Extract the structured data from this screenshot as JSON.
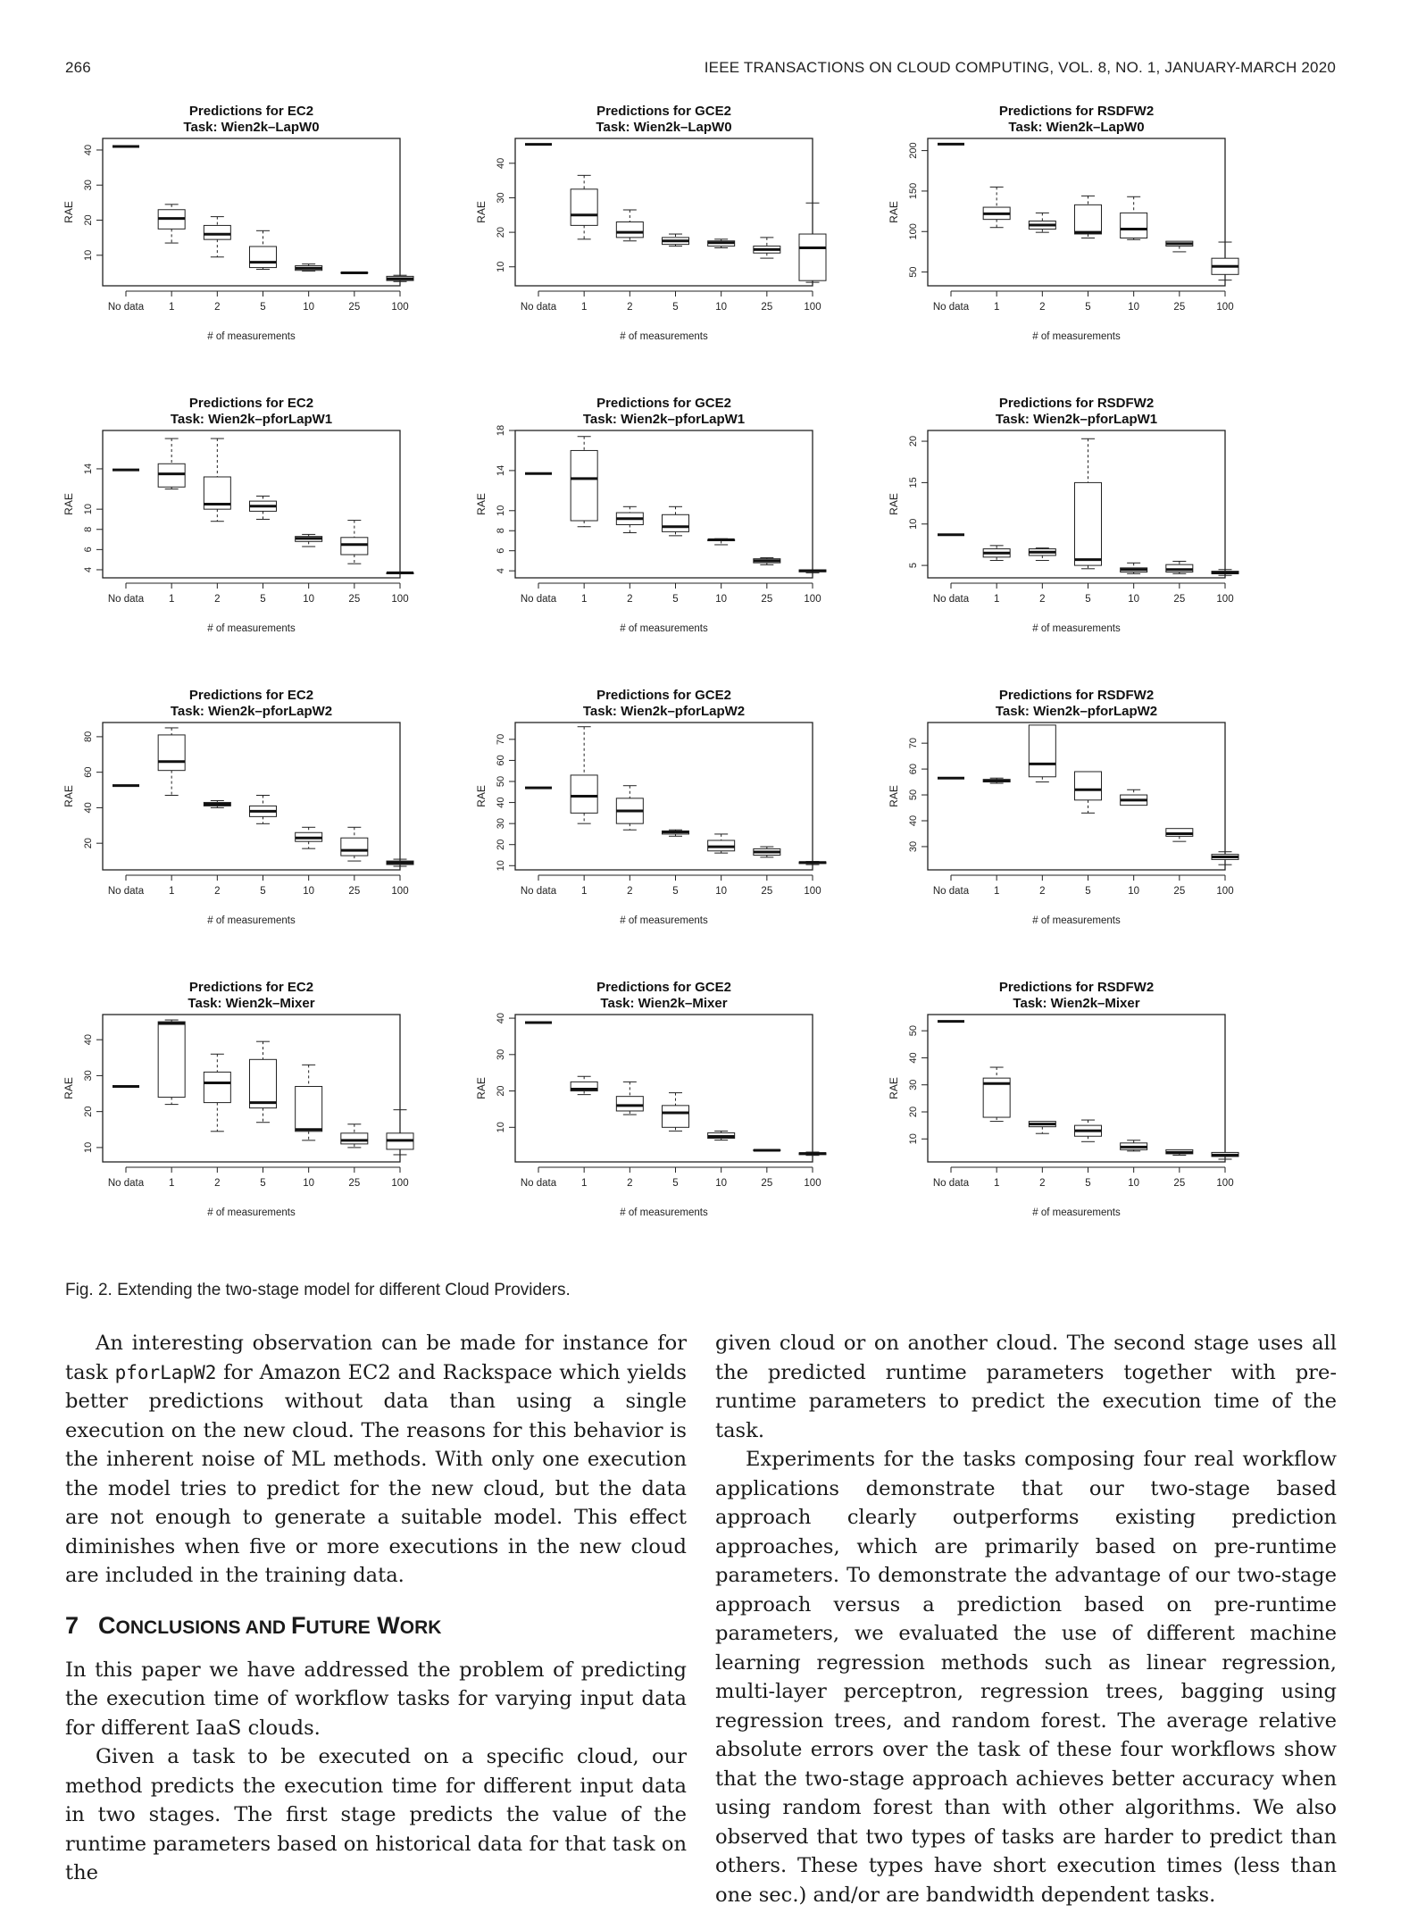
{
  "header": {
    "page_number": "266",
    "journal": "IEEE TRANSACTIONS ON CLOUD COMPUTING, VOL. 8, NO. 1, JANUARY-MARCH 2020"
  },
  "figure": {
    "caption": "Fig. 2. Extending the two-stage model for different Cloud Providers."
  },
  "chart_data": [
    {
      "type": "boxplot",
      "title": "Predictions for EC2",
      "subtitle": "Task: Wien2k–LapW0",
      "xlabel": "# of measurements",
      "ylabel": "RAE",
      "categories": [
        "No data",
        "1",
        "2",
        "5",
        "10",
        "25",
        "100"
      ],
      "yticks": [
        10,
        20,
        30,
        40
      ],
      "ylim": [
        1.3,
        43.3
      ],
      "boxes": [
        [
          41,
          41,
          41,
          41,
          41
        ],
        [
          13.5,
          17.5,
          20.5,
          23,
          24.5
        ],
        [
          9.5,
          14.5,
          16,
          18.5,
          21
        ],
        [
          6,
          6.5,
          8,
          12.5,
          17
        ],
        [
          5.5,
          5.7,
          6.3,
          7,
          7.5
        ],
        [
          4.8,
          4.9,
          5,
          5.1,
          5.2
        ],
        [
          2.5,
          2.8,
          3.3,
          4,
          4.3
        ]
      ]
    },
    {
      "type": "boxplot",
      "title": "Predictions for GCE2",
      "subtitle": "Task: Wien2k–LapW0",
      "xlabel": "# of measurements",
      "ylabel": "RAE",
      "categories": [
        "No data",
        "1",
        "2",
        "5",
        "10",
        "25",
        "100"
      ],
      "yticks": [
        10,
        20,
        30,
        40
      ],
      "ylim": [
        4.5,
        47.2
      ],
      "boxes": [
        [
          45.5,
          45.5,
          45.5,
          45.5,
          45.5
        ],
        [
          18,
          22,
          25,
          32.5,
          36.5
        ],
        [
          17.5,
          18.5,
          20,
          23,
          26.5
        ],
        [
          16,
          16.5,
          17.5,
          18.5,
          19.5
        ],
        [
          15.5,
          16,
          17,
          17.5,
          18
        ],
        [
          12.5,
          14,
          15,
          16,
          18.5
        ],
        [
          5.5,
          6,
          15.5,
          19.5,
          28.5
        ]
      ]
    },
    {
      "type": "boxplot",
      "title": "Predictions for RSDFW2",
      "subtitle": "Task: Wien2k–LapW0",
      "xlabel": "# of measurements",
      "ylabel": "RAE",
      "categories": [
        "No data",
        "1",
        "2",
        "5",
        "10",
        "25",
        "100"
      ],
      "yticks": [
        50,
        100,
        150,
        200
      ],
      "ylim": [
        33,
        215
      ],
      "boxes": [
        [
          208,
          208,
          208,
          208,
          208
        ],
        [
          105,
          115,
          122,
          130,
          155
        ],
        [
          99,
          103,
          108,
          113,
          123
        ],
        [
          92,
          97,
          99,
          133,
          144
        ],
        [
          90,
          92,
          103,
          123,
          143
        ],
        [
          75,
          82,
          85,
          88,
          88
        ],
        [
          40,
          47,
          57,
          67,
          87
        ]
      ]
    },
    {
      "type": "boxplot",
      "title": "Predictions for EC2",
      "subtitle": "Task: Wien2k–pforLapW1",
      "xlabel": "# of measurements",
      "ylabel": "RAE",
      "categories": [
        "No data",
        "1",
        "2",
        "5",
        "10",
        "25",
        "100"
      ],
      "yticks": [
        4,
        6,
        8,
        10,
        14
      ],
      "ylim": [
        3.2,
        17.8
      ],
      "boxes": [
        [
          13.9,
          13.9,
          13.9,
          13.9,
          13.9
        ],
        [
          12,
          12.2,
          13.5,
          14.5,
          17
        ],
        [
          8.8,
          10,
          10.5,
          13.2,
          17
        ],
        [
          9,
          9.8,
          10.3,
          10.8,
          11.3
        ],
        [
          6.3,
          6.8,
          7.1,
          7.3,
          7.5
        ],
        [
          4.6,
          5.5,
          6.5,
          7.2,
          8.9
        ],
        [
          3.6,
          3.6,
          3.7,
          3.7,
          3.7
        ]
      ]
    },
    {
      "type": "boxplot",
      "title": "Predictions for GCE2",
      "subtitle": "Task: Wien2k–pforLapW1",
      "xlabel": "# of measurements",
      "ylabel": "RAE",
      "categories": [
        "No data",
        "1",
        "2",
        "5",
        "10",
        "25",
        "100"
      ],
      "yticks": [
        4,
        6,
        8,
        10,
        14,
        18
      ],
      "ylim": [
        3.3,
        18
      ],
      "boxes": [
        [
          13.7,
          13.7,
          13.7,
          13.7,
          13.7
        ],
        [
          8.4,
          9,
          13.2,
          16,
          17.4
        ],
        [
          7.8,
          8.6,
          9.2,
          9.8,
          10.4
        ],
        [
          7.5,
          7.9,
          8.4,
          9.6,
          10.4
        ],
        [
          6.6,
          7,
          7.1,
          7.1,
          7.2
        ],
        [
          4.6,
          4.8,
          5,
          5.2,
          5.3
        ],
        [
          3.8,
          3.9,
          4,
          4.1,
          4.1
        ]
      ]
    },
    {
      "type": "boxplot",
      "title": "Predictions for RSDFW2",
      "subtitle": "Task: Wien2k–pforLapW1",
      "xlabel": "# of measurements",
      "ylabel": "RAE",
      "categories": [
        "No data",
        "1",
        "2",
        "5",
        "10",
        "25",
        "100"
      ],
      "yticks": [
        5,
        10,
        15,
        20
      ],
      "ylim": [
        3.5,
        21.3
      ],
      "boxes": [
        [
          8.7,
          8.7,
          8.7,
          8.7,
          8.7
        ],
        [
          5.6,
          6,
          6.5,
          7,
          7.4
        ],
        [
          5.6,
          6.2,
          6.6,
          7,
          7.1
        ],
        [
          4.6,
          5,
          5.7,
          15,
          20.3
        ],
        [
          4,
          4.2,
          4.5,
          4.7,
          5.3
        ],
        [
          4,
          4.2,
          4.5,
          5.1,
          5.5
        ],
        [
          3.8,
          4,
          4.1,
          4.3,
          4.5
        ]
      ]
    },
    {
      "type": "boxplot",
      "title": "Predictions for EC2",
      "subtitle": "Task: Wien2k–pforLapW2",
      "xlabel": "# of measurements",
      "ylabel": "RAE",
      "categories": [
        "No data",
        "1",
        "2",
        "5",
        "10",
        "25",
        "100"
      ],
      "yticks": [
        20,
        40,
        60,
        80
      ],
      "ylim": [
        5,
        88
      ],
      "boxes": [
        [
          52.5,
          52.5,
          52.5,
          52.5,
          52.5
        ],
        [
          47,
          61,
          66,
          81,
          85
        ],
        [
          40,
          41,
          42,
          43,
          44
        ],
        [
          31,
          35,
          38,
          41,
          47
        ],
        [
          17,
          21,
          23,
          26,
          29
        ],
        [
          10,
          13,
          16,
          23,
          29
        ],
        [
          7,
          8,
          9,
          10,
          11
        ]
      ]
    },
    {
      "type": "boxplot",
      "title": "Predictions for GCE2",
      "subtitle": "Task: Wien2k–pforLapW2",
      "xlabel": "# of measurements",
      "ylabel": "RAE",
      "categories": [
        "No data",
        "1",
        "2",
        "5",
        "10",
        "25",
        "100"
      ],
      "yticks": [
        10,
        20,
        30,
        40,
        50,
        60,
        70
      ],
      "ylim": [
        8,
        78
      ],
      "boxes": [
        [
          47,
          47,
          47,
          47,
          47
        ],
        [
          30,
          35,
          43,
          53,
          76
        ],
        [
          27,
          30,
          36,
          42,
          48
        ],
        [
          24,
          25,
          26,
          26.5,
          27
        ],
        [
          16,
          17,
          19,
          22,
          25
        ],
        [
          14,
          15,
          16.5,
          18,
          19
        ],
        [
          10.5,
          11,
          11.5,
          11.8,
          12
        ]
      ]
    },
    {
      "type": "boxplot",
      "title": "Predictions for RSDFW2",
      "subtitle": "Task: Wien2k–pforLapW2",
      "xlabel": "# of measurements",
      "ylabel": "RAE",
      "categories": [
        "No data",
        "1",
        "2",
        "5",
        "10",
        "25",
        "100"
      ],
      "yticks": [
        30,
        40,
        50,
        60,
        70
      ],
      "ylim": [
        21,
        78
      ],
      "boxes": [
        [
          56.5,
          56.5,
          56.5,
          56.5,
          56.5
        ],
        [
          54.5,
          55,
          55.5,
          56,
          56.5
        ],
        [
          55,
          57,
          62,
          77,
          77
        ],
        [
          43,
          48,
          52,
          59,
          59
        ],
        [
          46,
          46,
          48,
          50,
          52
        ],
        [
          32,
          34,
          35,
          37,
          37
        ],
        [
          23,
          25,
          26,
          27,
          28
        ]
      ]
    },
    {
      "type": "boxplot",
      "title": "Predictions for EC2",
      "subtitle": "Task: Wien2k–Mixer",
      "xlabel": "# of measurements",
      "ylabel": "RAE",
      "categories": [
        "No data",
        "1",
        "2",
        "5",
        "10",
        "25",
        "100"
      ],
      "yticks": [
        10,
        20,
        30,
        40
      ],
      "ylim": [
        6,
        47
      ],
      "boxes": [
        [
          27,
          27,
          27,
          27,
          27
        ],
        [
          22,
          24,
          44.5,
          45,
          45.5
        ],
        [
          14.5,
          22.5,
          28,
          31,
          36
        ],
        [
          17,
          21,
          22.5,
          34.5,
          39.5
        ],
        [
          12,
          14.5,
          15,
          27,
          33
        ],
        [
          10,
          11,
          12,
          14,
          16.5
        ],
        [
          8,
          9.5,
          12,
          14,
          20.5
        ]
      ]
    },
    {
      "type": "boxplot",
      "title": "Predictions for GCE2",
      "subtitle": "Task: Wien2k–Mixer",
      "xlabel": "# of measurements",
      "ylabel": "RAE",
      "categories": [
        "No data",
        "1",
        "2",
        "5",
        "10",
        "25",
        "100"
      ],
      "yticks": [
        10,
        20,
        30,
        40
      ],
      "ylim": [
        0.5,
        41
      ],
      "boxes": [
        [
          38.8,
          38.8,
          38.8,
          38.8,
          38.8
        ],
        [
          19,
          20,
          20.5,
          22.5,
          24
        ],
        [
          13.5,
          14.5,
          16,
          18.5,
          22.5
        ],
        [
          9,
          10,
          14,
          16,
          19.5
        ],
        [
          6.5,
          7,
          7.5,
          8.5,
          9
        ],
        [
          3.5,
          3.6,
          3.7,
          3.8,
          3.9
        ],
        [
          2.3,
          2.5,
          2.8,
          3,
          3.2
        ]
      ]
    },
    {
      "type": "boxplot",
      "title": "Predictions for RSDFW2",
      "subtitle": "Task: Wien2k–Mixer",
      "xlabel": "# of measurements",
      "ylabel": "RAE",
      "categories": [
        "No data",
        "1",
        "2",
        "5",
        "10",
        "25",
        "100"
      ],
      "yticks": [
        10,
        20,
        30,
        40,
        50
      ],
      "ylim": [
        1.5,
        56
      ],
      "boxes": [
        [
          53.5,
          53.5,
          53.5,
          53.5,
          53.5
        ],
        [
          16.5,
          18,
          30.5,
          32.5,
          36.5
        ],
        [
          12,
          14.5,
          15.5,
          16.5,
          16.5
        ],
        [
          9,
          11,
          13,
          15,
          17
        ],
        [
          5.5,
          6,
          7,
          8.5,
          9.5
        ],
        [
          4,
          4.5,
          5,
          6,
          6
        ],
        [
          2.5,
          3.5,
          4,
          5,
          5
        ]
      ]
    }
  ],
  "body": {
    "left_para1_a": "An interesting observation can be made for instance for task ",
    "left_para1_code": "pforLapW2",
    "left_para1_b": " for Amazon EC2 and Rackspace which yields better predictions without data than using a single execution on the new cloud. The reasons for this behavior is the inherent noise of ML methods. With only one execution the model tries to predict for the new cloud, but the data are not enough to generate a suitable model. This effect diminishes when five or more executions in the new cloud are included in the training data.",
    "section_number": "7",
    "section_title_c": "C",
    "section_title_onclusions": "ONCLUSIONS",
    "section_title_and": " AND ",
    "section_title_f": "F",
    "section_title_uture": "UTURE",
    "section_title_w": " W",
    "section_title_ork": "ORK",
    "left_para2": "In this paper we have addressed the problem of predicting the execution time of workflow tasks for varying input data for different IaaS clouds.",
    "left_para3": "Given a task to be executed on a specific cloud, our method predicts the execution time for different input data in two stages. The first stage predicts the value of the runtime parameters based on historical data for that task on the",
    "right_para1": "given cloud or on another cloud. The second stage uses all the predicted runtime parameters together with pre-runtime parameters to predict the execution time of the task.",
    "right_para2": "Experiments for the tasks composing four real workflow applications demonstrate that our two-stage based approach clearly outperforms existing prediction approaches, which are primarily based on pre-runtime parameters. To demonstrate the advantage of our two-stage approach versus a prediction based on pre-runtime parameters, we evaluated the use of different machine learning regression methods such as linear regression, multi-layer perceptron, regression trees, bagging using regression trees, and random forest. The average relative absolute errors over the task of these four workflows show that the two-stage approach achieves better accuracy when using random forest than with other algorithms. We also observed that two types of tasks are harder to predict than others. These types have short execution times (less than one sec.) and/or are bandwidth dependent tasks."
  }
}
